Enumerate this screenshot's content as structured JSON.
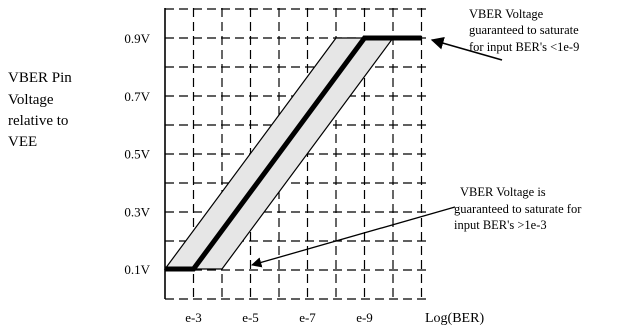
{
  "chart_data": {
    "type": "line",
    "ylabel_lines": [
      "VBER Pin",
      "Voltage",
      "relative to",
      "VEE"
    ],
    "y_ticks": [
      "0.9V",
      "0.7V",
      "0.5V",
      "0.3V",
      "0.1V"
    ],
    "x_ticks": [
      "e-3",
      "e-5",
      "e-7",
      "e-9"
    ],
    "x_unit_label": "Log(BER)",
    "ylim": [
      0.1,
      0.9
    ],
    "grid": true,
    "series": [
      {
        "points": [
          {
            "x": "e-2",
            "y": 0.1
          },
          {
            "x": "e-3",
            "y": 0.1
          },
          {
            "x": "e-9",
            "y": 0.9
          },
          {
            "x": "e-11",
            "y": 0.9
          }
        ]
      }
    ],
    "tolerance_band": {
      "upper": [
        {
          "x": "e-2",
          "y": 0.1
        },
        {
          "x": "e-8",
          "y": 0.9
        }
      ],
      "lower": [
        {
          "x": "e-4",
          "y": 0.1
        },
        {
          "x": "e-10",
          "y": 0.9
        }
      ]
    },
    "annotations": [
      {
        "lines": [
          "VBER Voltage",
          "guaranteed to saturate",
          "for input BER's <1e-9"
        ],
        "points_to": {
          "x": "e-11",
          "y": 0.9
        }
      },
      {
        "lines": [
          "VBER Voltage is",
          "guaranteed to saturate for",
          "input BER's >1e-3"
        ],
        "points_to": {
          "x": "e-4",
          "y": 0.1
        }
      }
    ]
  },
  "colors": {
    "line": "#000000",
    "band_fill": "#e6e6e6",
    "grid": "#000000"
  }
}
